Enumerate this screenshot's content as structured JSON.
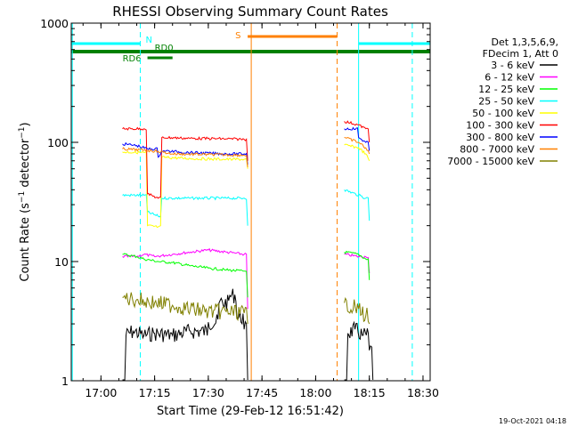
{
  "chart_data": {
    "type": "line",
    "title": "RHESSI Observing Summary Count Rates",
    "xlabel": "Start Time (29-Feb-12 16:51:42)",
    "ylabel_main": "Count Rate (s",
    "ylabel_exp1": "−1",
    "ylabel_mid": " detector",
    "ylabel_exp2": "−1",
    "ylabel_end": ")",
    "ylog": true,
    "ylim": [
      1,
      1000
    ],
    "xlim": [
      "16:51:42",
      "18:32:00"
    ],
    "x_ticks": [
      "17:00",
      "17:15",
      "17:30",
      "17:45",
      "18:00",
      "18:15",
      "18:30"
    ],
    "y_ticks": [
      "1",
      "10",
      "100",
      "1000"
    ],
    "info_lines": [
      "Det 1,3,5,6,9,",
      "FDecim 1, Att 0"
    ],
    "footer": "19-Oct-2021 04:18",
    "series": [
      {
        "name": "3 - 6 keV",
        "color": "#000000",
        "segments": [
          [
            [
              "17:06",
              1.0
            ],
            [
              "17:07",
              2.4
            ],
            [
              "17:09",
              2.6
            ],
            [
              "17:12",
              2.4
            ],
            [
              "17:15",
              2.5
            ],
            [
              "17:20",
              2.4
            ],
            [
              "17:25",
              2.6
            ],
            [
              "17:30",
              3.1
            ],
            [
              "17:33",
              4.5
            ],
            [
              "17:36",
              5.2
            ],
            [
              "17:38",
              3.4
            ],
            [
              "17:40",
              2.7
            ],
            [
              "17:41",
              1.0
            ]
          ],
          [
            [
              "18:08",
              1.0
            ],
            [
              "18:09",
              2.5
            ],
            [
              "18:11",
              2.7
            ],
            [
              "18:13",
              2.4
            ],
            [
              "18:15",
              1.8
            ],
            [
              "18:16",
              1.0
            ]
          ]
        ]
      },
      {
        "name": "6 - 12 keV",
        "color": "#ff00ff",
        "segments": [
          [
            [
              "17:06",
              11.0
            ],
            [
              "17:10",
              11.0
            ],
            [
              "17:12",
              11.5
            ],
            [
              "17:15",
              11.0
            ],
            [
              "17:20",
              11.5
            ],
            [
              "17:25",
              12.0
            ],
            [
              "17:30",
              12.5
            ],
            [
              "17:35",
              12.0
            ],
            [
              "17:40",
              11.5
            ],
            [
              "17:41",
              4.0
            ]
          ],
          [
            [
              "18:08",
              11.5
            ],
            [
              "18:12",
              11.0
            ],
            [
              "18:14",
              11.0
            ],
            [
              "18:15",
              8.0
            ]
          ]
        ]
      },
      {
        "name": "12 - 25 keV",
        "color": "#00ff00",
        "segments": [
          [
            [
              "17:06",
              11.5
            ],
            [
              "17:10",
              11.0
            ],
            [
              "17:12",
              10.5
            ],
            [
              "17:16",
              10.0
            ],
            [
              "17:20",
              9.8
            ],
            [
              "17:25",
              9.2
            ],
            [
              "17:30",
              8.8
            ],
            [
              "17:35",
              8.5
            ],
            [
              "17:40",
              8.3
            ],
            [
              "17:41",
              5.0
            ]
          ],
          [
            [
              "18:08",
              12.0
            ],
            [
              "18:12",
              11.5
            ],
            [
              "18:14",
              10.5
            ],
            [
              "18:15",
              7.0
            ]
          ]
        ]
      },
      {
        "name": "25 - 50 keV",
        "color": "#00ffff",
        "segments": [
          [
            [
              "17:06",
              36.0
            ],
            [
              "17:12",
              36.0
            ],
            [
              "17:13",
              26.0
            ],
            [
              "17:16",
              24.0
            ],
            [
              "17:17",
              34.0
            ],
            [
              "17:25",
              34.0
            ],
            [
              "17:35",
              34.0
            ],
            [
              "17:40",
              34.0
            ],
            [
              "17:41",
              20.0
            ]
          ],
          [
            [
              "18:08",
              40.0
            ],
            [
              "18:12",
              36.0
            ],
            [
              "18:14",
              34.0
            ],
            [
              "18:15",
              22.0
            ]
          ]
        ]
      },
      {
        "name": "50 - 100 keV",
        "color": "#ffff00",
        "segments": [
          [
            [
              "17:06",
              83.0
            ],
            [
              "17:12",
              82.0
            ],
            [
              "17:13",
              20.0
            ],
            [
              "17:16",
              19.5
            ],
            [
              "17:17",
              75.0
            ],
            [
              "17:25",
              73.0
            ],
            [
              "17:35",
              72.0
            ],
            [
              "17:40",
              72.0
            ],
            [
              "17:41",
              60.0
            ]
          ],
          [
            [
              "18:08",
              95.0
            ],
            [
              "18:12",
              90.0
            ],
            [
              "18:14",
              80.0
            ],
            [
              "18:15",
              70.0
            ]
          ]
        ]
      },
      {
        "name": "100 - 300 keV",
        "color": "#ff0000",
        "segments": [
          [
            [
              "17:06",
              130.0
            ],
            [
              "17:12",
              130.0
            ],
            [
              "17:13",
              37.0
            ],
            [
              "17:16",
              34.0
            ],
            [
              "17:17",
              110.0
            ],
            [
              "17:25",
              108.0
            ],
            [
              "17:35",
              107.0
            ],
            [
              "17:40",
              106.0
            ],
            [
              "17:41",
              70.0
            ]
          ],
          [
            [
              "18:08",
              150.0
            ],
            [
              "18:12",
              140.0
            ],
            [
              "18:14",
              130.0
            ],
            [
              "18:15",
              100.0
            ]
          ]
        ]
      },
      {
        "name": "300 - 800 keV",
        "color": "#0000ff",
        "segments": [
          [
            [
              "17:06",
              97.0
            ],
            [
              "17:10",
              94.0
            ],
            [
              "17:13",
              88.0
            ],
            [
              "17:16",
              75.0
            ],
            [
              "17:17",
              85.0
            ],
            [
              "17:25",
              82.0
            ],
            [
              "17:35",
              80.0
            ],
            [
              "17:40",
              80.0
            ],
            [
              "17:41",
              65.0
            ]
          ],
          [
            [
              "18:08",
              130.0
            ],
            [
              "18:12",
              110.0
            ],
            [
              "18:14",
              100.0
            ],
            [
              "18:15",
              85.0
            ]
          ]
        ]
      },
      {
        "name": "800 - 7000 keV",
        "color": "#ff8000",
        "segments": [
          [
            [
              "17:06",
              88.0
            ],
            [
              "17:12",
              86.0
            ],
            [
              "17:16",
              84.0
            ],
            [
              "17:20",
              80.0
            ],
            [
              "17:30",
              79.0
            ],
            [
              "17:40",
              78.0
            ],
            [
              "17:41",
              62.0
            ]
          ],
          [
            [
              "18:08",
              110.0
            ],
            [
              "18:12",
              100.0
            ],
            [
              "18:14",
              90.0
            ],
            [
              "18:15",
              80.0
            ]
          ]
        ]
      },
      {
        "name": "7000 - 15000 keV",
        "color": "#808000",
        "segments": [
          [
            [
              "17:06",
              5.0
            ],
            [
              "17:10",
              4.8
            ],
            [
              "17:15",
              4.5
            ],
            [
              "17:20",
              4.3
            ],
            [
              "17:25",
              4.0
            ],
            [
              "17:30",
              3.8
            ],
            [
              "17:35",
              3.8
            ],
            [
              "17:40",
              3.7
            ],
            [
              "17:41",
              3.0
            ]
          ],
          [
            [
              "18:08",
              4.5
            ],
            [
              "18:12",
              4.0
            ],
            [
              "18:14",
              3.5
            ],
            [
              "18:15",
              3.0
            ]
          ]
        ]
      }
    ],
    "flag_bars": [
      {
        "label": "N",
        "color": "#00ffff",
        "segments": [
          [
            "16:51:42",
            "17:11"
          ],
          [
            "18:12",
            "18:32"
          ]
        ]
      },
      {
        "label": "S",
        "color": "#ff8000",
        "segments": [
          [
            "17:41",
            "18:06"
          ]
        ]
      },
      {
        "label": "RD0",
        "color": "#008000",
        "segments": [
          [
            "16:51:42",
            "18:32"
          ]
        ]
      },
      {
        "label": "RD6",
        "color": "#008000",
        "segments": [
          [
            "17:13",
            "17:20"
          ]
        ]
      }
    ],
    "vertical_lines": [
      {
        "time": "16:52",
        "color": "#00ffff",
        "style": "solid"
      },
      {
        "time": "17:11",
        "color": "#00ffff",
        "style": "dashed"
      },
      {
        "time": "17:42",
        "color": "#ff8000",
        "style": "solid"
      },
      {
        "time": "18:06",
        "color": "#ff8000",
        "style": "dashed"
      },
      {
        "time": "18:12",
        "color": "#00ffff",
        "style": "solid"
      },
      {
        "time": "18:27",
        "color": "#00ffff",
        "style": "dashed"
      }
    ]
  }
}
